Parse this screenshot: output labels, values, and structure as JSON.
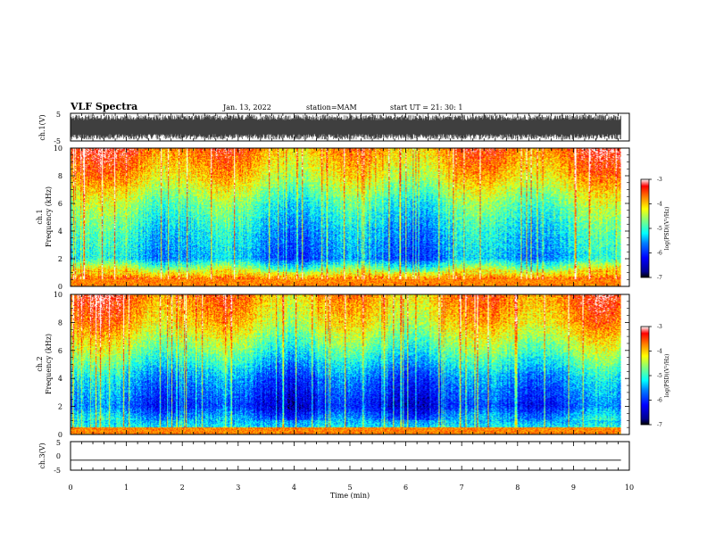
{
  "header": {
    "title": "VLF Spectra",
    "date": "Jan. 13, 2022",
    "station": "station=MAM",
    "start": "start UT = 21: 30: 1"
  },
  "colors": {
    "axis": "#000000",
    "trace": "#000000",
    "background": "#ffffff",
    "colormap": [
      "#00008f",
      "#0000ff",
      "#007fff",
      "#00ffff",
      "#7fff7f",
      "#ffff00",
      "#ff7f00",
      "#ff0000",
      "#7f0000"
    ]
  },
  "chart_data": [
    {
      "type": "line",
      "name": "ch1-waveform",
      "ylabel": "ch.1(V)",
      "ylim": [
        -5,
        5
      ],
      "yticks": [
        "5",
        "-5"
      ],
      "xlim": [
        0,
        9.85
      ],
      "amplitude_range": [
        -4.5,
        4.5
      ],
      "description_note": ""
    },
    {
      "type": "heatmap",
      "name": "ch1-spectrogram",
      "ylabel": "ch.1\nFrequency (kHz)",
      "ylabel_lines": [
        "ch.1",
        "Frequency (kHz)"
      ],
      "ylim": [
        0,
        10
      ],
      "yticks": [
        "0",
        "2",
        "4",
        "6",
        "8",
        "10"
      ],
      "xlim": [
        0,
        10
      ],
      "data_extent_min": 9.85,
      "colorbar": {
        "label": "log(PSD)(V²/Hz)",
        "range": [
          -7,
          -3
        ],
        "ticks": [
          "-3",
          "-4",
          "-5",
          "-6",
          "-7"
        ]
      },
      "levels_by_freq_khz": {
        "0.5": -3.5,
        "2": -5.6,
        "4": -5.3,
        "6": -4.8,
        "8": -4.0,
        "10": -3.5
      }
    },
    {
      "type": "heatmap",
      "name": "ch2-spectrogram",
      "ylabel_lines": [
        "ch.2",
        "Frequency (kHz)"
      ],
      "ylim": [
        0,
        10
      ],
      "yticks": [
        "0",
        "2",
        "4",
        "6",
        "8",
        "10"
      ],
      "xlim": [
        0,
        10
      ],
      "data_extent_min": 9.85,
      "colorbar": {
        "label": "log(PSD)(V²/Hz)",
        "range": [
          -7,
          -3
        ],
        "ticks": [
          "-3",
          "-4",
          "-5",
          "-6",
          "-7"
        ]
      },
      "levels_by_freq_khz": {
        "0.2": -5.0,
        "2": -6.2,
        "4": -5.7,
        "6": -4.8,
        "8": -4.0,
        "10": -3.6
      }
    },
    {
      "type": "line",
      "name": "ch3-waveform",
      "ylabel": "ch.3(V)",
      "ylim": [
        -5,
        5
      ],
      "yticks": [
        "5",
        "0",
        "-5"
      ],
      "xlim": [
        0,
        9.85
      ],
      "constant_value": -1.5
    }
  ],
  "xaxis": {
    "label": "Time (min)",
    "ticks": [
      "0",
      "1",
      "2",
      "3",
      "4",
      "5",
      "6",
      "7",
      "8",
      "9",
      "10"
    ]
  }
}
